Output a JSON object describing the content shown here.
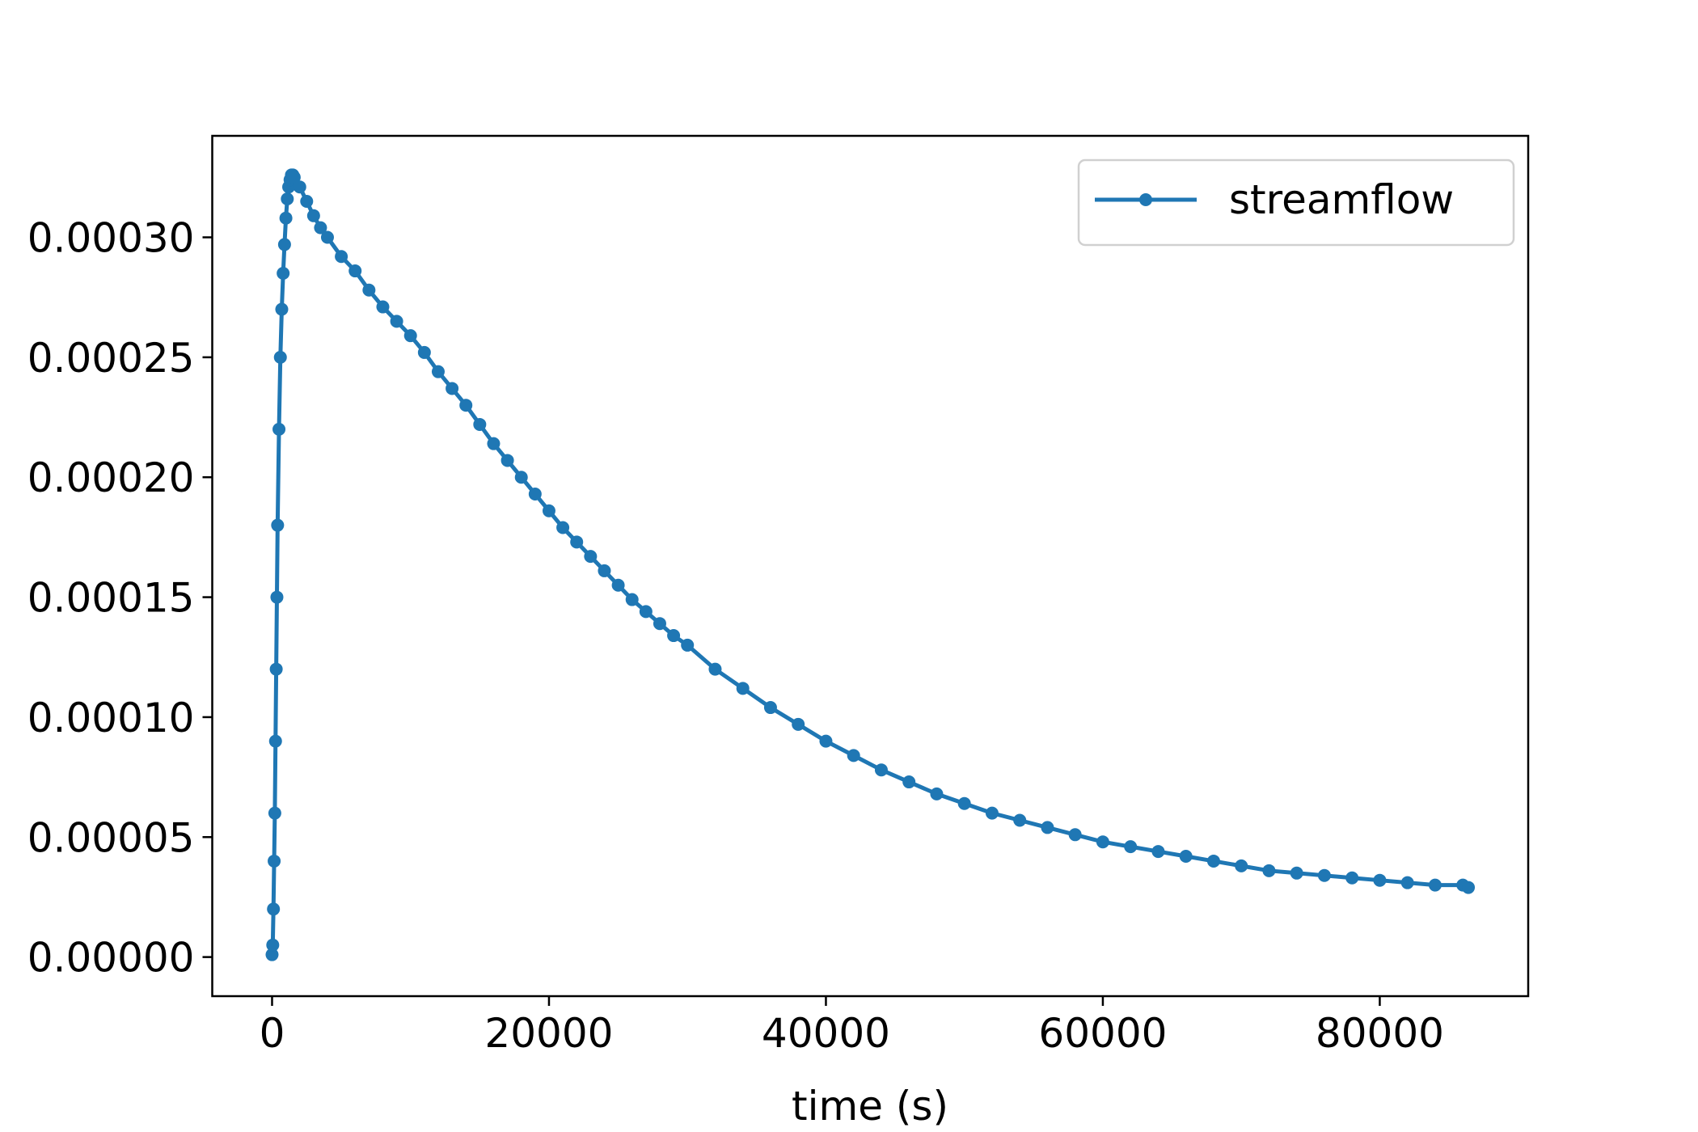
{
  "chart_data": {
    "type": "line",
    "title": "",
    "xlabel": "time (s)",
    "ylabel": "",
    "xlim": [
      -4320,
      90720
    ],
    "ylim": [
      -1.63e-05,
      0.0003423
    ],
    "xticks": [
      0,
      20000,
      40000,
      60000,
      80000
    ],
    "xtick_labels": [
      "0",
      "20000",
      "40000",
      "60000",
      "80000"
    ],
    "yticks": [
      0,
      5e-05,
      0.0001,
      0.00015,
      0.0002,
      0.00025,
      0.0003
    ],
    "ytick_labels": [
      "0.00000",
      "0.00005",
      "0.00010",
      "0.00015",
      "0.00020",
      "0.00025",
      "0.00030"
    ],
    "grid": false,
    "legend_position": "top-right",
    "colors": {
      "series": "#1f77b4",
      "axes": "#000000",
      "legend_border": "#cccccc"
    },
    "series": [
      {
        "name": "streamflow",
        "marker": "circle",
        "x": [
          0,
          50,
          100,
          150,
          200,
          250,
          300,
          350,
          400,
          500,
          600,
          700,
          800,
          900,
          1000,
          1100,
          1200,
          1300,
          1400,
          1500,
          1600,
          2000,
          2500,
          3000,
          3500,
          4000,
          5000,
          6000,
          7000,
          8000,
          9000,
          10000,
          11000,
          12000,
          13000,
          14000,
          15000,
          16000,
          17000,
          18000,
          19000,
          20000,
          21000,
          22000,
          23000,
          24000,
          25000,
          26000,
          27000,
          28000,
          29000,
          30000,
          32000,
          34000,
          36000,
          38000,
          40000,
          42000,
          44000,
          46000,
          48000,
          50000,
          52000,
          54000,
          56000,
          58000,
          60000,
          62000,
          64000,
          66000,
          68000,
          70000,
          72000,
          74000,
          76000,
          78000,
          80000,
          82000,
          84000,
          86000,
          86400
        ],
        "y": [
          1e-06,
          5e-06,
          2e-05,
          4e-05,
          6e-05,
          9e-05,
          0.00012,
          0.00015,
          0.00018,
          0.00022,
          0.00025,
          0.00027,
          0.000285,
          0.000297,
          0.000308,
          0.000316,
          0.000321,
          0.000324,
          0.000326,
          0.000326,
          0.000325,
          0.000321,
          0.000315,
          0.000309,
          0.000304,
          0.0003,
          0.000292,
          0.000286,
          0.000278,
          0.000271,
          0.000265,
          0.000259,
          0.000252,
          0.000244,
          0.000237,
          0.00023,
          0.000222,
          0.000214,
          0.000207,
          0.0002,
          0.000193,
          0.000186,
          0.000179,
          0.000173,
          0.000167,
          0.000161,
          0.000155,
          0.000149,
          0.000144,
          0.000139,
          0.000134,
          0.00013,
          0.00012,
          0.000112,
          0.000104,
          9.7e-05,
          9e-05,
          8.4e-05,
          7.8e-05,
          7.3e-05,
          6.8e-05,
          6.4e-05,
          6e-05,
          5.7e-05,
          5.4e-05,
          5.1e-05,
          4.8e-05,
          4.6e-05,
          4.4e-05,
          4.2e-05,
          4e-05,
          3.8e-05,
          3.6e-05,
          3.5e-05,
          3.4e-05,
          3.3e-05,
          3.2e-05,
          3.1e-05,
          3e-05,
          3e-05,
          2.9e-05
        ]
      }
    ]
  }
}
